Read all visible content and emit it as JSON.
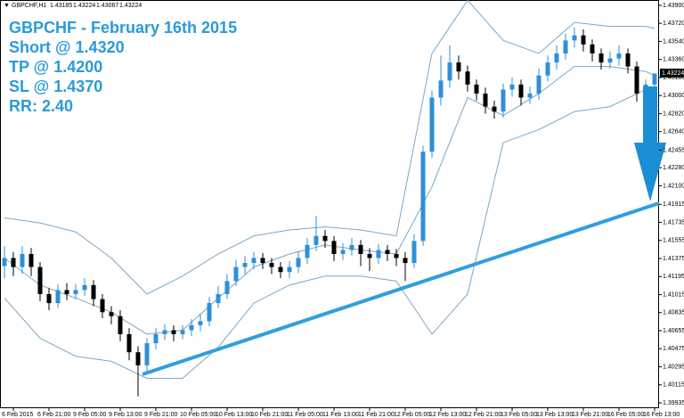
{
  "chart_data": {
    "type": "candlestick",
    "symbol": "GBPCHF,H1",
    "header_ohlc": [
      1.43185,
      1.43224,
      1.43067,
      1.43224
    ],
    "annotations": [
      "GBPCHF - February 16th 2015",
      "Short @ 1.4320",
      "TP @ 1.4200",
      "SL @ 1.4370",
      "RR: 2.40"
    ],
    "current_price": {
      "value": 1.43224,
      "label": "1.43224"
    },
    "categories": [
      null,
      "6 Feb 2015",
      null,
      null,
      null,
      "6 Feb 21:00",
      null,
      null,
      null,
      "9 Feb 05:00",
      null,
      null,
      null,
      "9 Feb 13:00",
      null,
      null,
      null,
      "9 Feb 21:00",
      null,
      null,
      null,
      "10 Feb 05:00",
      null,
      null,
      null,
      "10 Feb 13:00",
      null,
      null,
      null,
      "10 Feb 21:00",
      null,
      null,
      null,
      "11 Feb 05:00",
      null,
      null,
      null,
      "11 Feb 13:00",
      null,
      null,
      null,
      "11 Feb 21:00",
      null,
      null,
      null,
      "12 Feb 05:00",
      null,
      null,
      null,
      "12 Feb 13:00",
      null,
      null,
      null,
      "12 Feb 21:00",
      null,
      null,
      null,
      "13 Feb 05:00",
      null,
      null,
      null,
      "13 Feb 13:00",
      null,
      null,
      null,
      "13 Feb 21:00",
      null,
      null,
      null,
      "16 Feb 05:00",
      null,
      null,
      null,
      "16 Feb 13:00"
    ],
    "open": [
      1.413,
      1.4138,
      1.4129,
      1.4142,
      1.4129,
      1.4102,
      1.4093,
      1.4106,
      1.4102,
      1.4106,
      1.4111,
      1.4097,
      1.4084,
      1.408,
      1.4062,
      1.4044,
      1.4031,
      1.4053,
      1.4062,
      1.4066,
      1.4062,
      1.4066,
      1.4071,
      1.4075,
      1.4093,
      1.4102,
      1.4115,
      1.4129,
      1.4133,
      1.4138,
      1.4133,
      1.4129,
      1.4124,
      1.4129,
      1.4138,
      1.4151,
      1.416,
      1.4155,
      1.4142,
      1.4146,
      1.4151,
      1.4142,
      1.4138,
      1.4146,
      1.4142,
      1.4138,
      1.4133,
      1.4155,
      1.4244,
      1.4298,
      1.4315,
      1.4333,
      1.4324,
      1.4311,
      1.4302,
      1.4289,
      1.4284,
      1.4306,
      1.4311,
      1.4298,
      1.4302,
      1.432,
      1.4333,
      1.4342,
      1.4355,
      1.436,
      1.4351,
      1.4342,
      1.4333,
      1.4337,
      1.4342,
      1.4329,
      1.4302,
      1.4311
    ],
    "high": [
      1.415,
      1.4144,
      1.415,
      1.4148,
      1.4134,
      1.4108,
      1.4112,
      1.4113,
      1.4112,
      1.4118,
      1.4116,
      1.4102,
      1.409,
      1.4086,
      1.4068,
      1.405,
      1.4058,
      1.4068,
      1.4072,
      1.4071,
      1.4071,
      1.4077,
      1.4082,
      1.4099,
      1.411,
      1.4122,
      1.4136,
      1.414,
      1.4144,
      1.4143,
      1.4138,
      1.4134,
      1.4135,
      1.4145,
      1.4158,
      1.418,
      1.4166,
      1.416,
      1.4153,
      1.4158,
      1.4156,
      1.4148,
      1.4152,
      1.4151,
      1.4147,
      1.4144,
      1.4162,
      1.425,
      1.4305,
      1.434,
      1.435,
      1.434,
      1.433,
      1.4316,
      1.4308,
      1.4295,
      1.4312,
      1.4318,
      1.4316,
      1.4309,
      1.4327,
      1.434,
      1.435,
      1.4362,
      1.4368,
      1.4366,
      1.4356,
      1.4347,
      1.4344,
      1.435,
      1.4347,
      1.4334,
      1.4316,
      1.4322
    ],
    "low": [
      1.4118,
      1.412,
      1.4122,
      1.412,
      1.4095,
      1.4086,
      1.4088,
      1.4096,
      1.4097,
      1.41,
      1.409,
      1.4078,
      1.4072,
      1.4055,
      1.4036,
      1.4,
      1.4025,
      1.4047,
      1.4056,
      1.4055,
      1.4057,
      1.406,
      1.4065,
      1.407,
      1.4088,
      1.4097,
      1.411,
      1.4122,
      1.4127,
      1.4127,
      1.4122,
      1.4118,
      1.4118,
      1.4123,
      1.4132,
      1.4145,
      1.4148,
      1.4135,
      1.4136,
      1.414,
      1.413,
      1.4125,
      1.4132,
      1.4135,
      1.413,
      1.4115,
      1.4128,
      1.415,
      1.4238,
      1.429,
      1.4308,
      1.4316,
      1.4304,
      1.4295,
      1.4282,
      1.4277,
      1.4278,
      1.4299,
      1.429,
      1.4292,
      1.4296,
      1.4314,
      1.4326,
      1.4336,
      1.4348,
      1.4344,
      1.4334,
      1.4326,
      1.4327,
      1.433,
      1.4322,
      1.4294,
      1.4296,
      1.4307
    ],
    "close": [
      1.4138,
      1.4129,
      1.4142,
      1.4129,
      1.4102,
      1.4093,
      1.4106,
      1.4102,
      1.4106,
      1.4111,
      1.4097,
      1.4084,
      1.408,
      1.4062,
      1.4044,
      1.4031,
      1.4053,
      1.4062,
      1.4066,
      1.4062,
      1.4066,
      1.4071,
      1.4075,
      1.4093,
      1.4102,
      1.4115,
      1.4129,
      1.4133,
      1.4138,
      1.4133,
      1.4129,
      1.4124,
      1.4129,
      1.4138,
      1.4151,
      1.416,
      1.4155,
      1.4142,
      1.4146,
      1.4151,
      1.4142,
      1.4138,
      1.4146,
      1.4142,
      1.4138,
      1.4133,
      1.4155,
      1.4244,
      1.4298,
      1.4315,
      1.4333,
      1.4324,
      1.4311,
      1.4302,
      1.4289,
      1.4284,
      1.4306,
      1.4311,
      1.4298,
      1.4302,
      1.432,
      1.4333,
      1.4342,
      1.4355,
      1.436,
      1.4351,
      1.4342,
      1.4333,
      1.4337,
      1.4342,
      1.4329,
      1.4302,
      1.4311,
      1.4322
    ],
    "up_color": "#2f8fd8",
    "down_color": "#000000",
    "bands": {
      "color": "#7aa7c8",
      "x": [
        0,
        4,
        8,
        12,
        16,
        20,
        24,
        28,
        32,
        36,
        40,
        44,
        48,
        52,
        56,
        60,
        64,
        68,
        72,
        73
      ],
      "upper": [
        1.4178,
        1.4173,
        1.4164,
        1.4138,
        1.4102,
        1.412,
        1.4142,
        1.416,
        1.4166,
        1.4169,
        1.4166,
        1.416,
        1.4342,
        1.4395,
        1.4355,
        1.4342,
        1.4373,
        1.4369,
        1.4369,
        1.4367
      ],
      "middle": [
        1.4138,
        1.4111,
        1.4098,
        1.4084,
        1.4062,
        1.4066,
        1.4098,
        1.4129,
        1.4142,
        1.4151,
        1.4146,
        1.4142,
        1.4209,
        1.4298,
        1.428,
        1.4302,
        1.4329,
        1.4329,
        1.4324,
        1.432
      ],
      "lower": [
        1.4098,
        1.4058,
        1.404,
        1.4035,
        1.4018,
        1.4018,
        1.4049,
        1.4093,
        1.4111,
        1.412,
        1.412,
        1.4115,
        1.4062,
        1.4102,
        1.4253,
        1.4266,
        1.4284,
        1.4289,
        1.4306,
        1.4297
      ]
    },
    "ylim": [
      1.39882,
      1.43953
    ],
    "yticks": [
      {
        "value": 1.439,
        "label": "1.43900"
      },
      {
        "value": 1.4372,
        "label": "1.43720"
      },
      {
        "value": 1.4354,
        "label": "1.43540"
      },
      {
        "value": 1.4336,
        "label": "1.43360"
      },
      {
        "value": 1.4318,
        "label": "1.43180"
      },
      {
        "value": 1.43,
        "label": "1.43000"
      },
      {
        "value": 1.4282,
        "label": "1.42820"
      },
      {
        "value": 1.4264,
        "label": "1.42640"
      },
      {
        "value": 1.42455,
        "label": "1.42455"
      },
      {
        "value": 1.4228,
        "label": "1.42280"
      },
      {
        "value": 1.421,
        "label": "1.42100"
      },
      {
        "value": 1.41915,
        "label": "1.41915"
      },
      {
        "value": 1.41735,
        "label": "1.41735"
      },
      {
        "value": 1.41555,
        "label": "1.41555"
      },
      {
        "value": 1.41375,
        "label": "1.41375"
      },
      {
        "value": 1.41195,
        "label": "1.41195"
      },
      {
        "value": 1.41015,
        "label": "1.41015"
      },
      {
        "value": 1.40835,
        "label": "1.40835"
      },
      {
        "value": 1.40655,
        "label": "1.40655"
      },
      {
        "value": 1.40475,
        "label": "1.40475"
      },
      {
        "value": 1.40295,
        "label": "1.40295"
      },
      {
        "value": 1.40115,
        "label": "1.40115"
      },
      {
        "value": 1.39935,
        "label": "1.39935"
      }
    ]
  }
}
